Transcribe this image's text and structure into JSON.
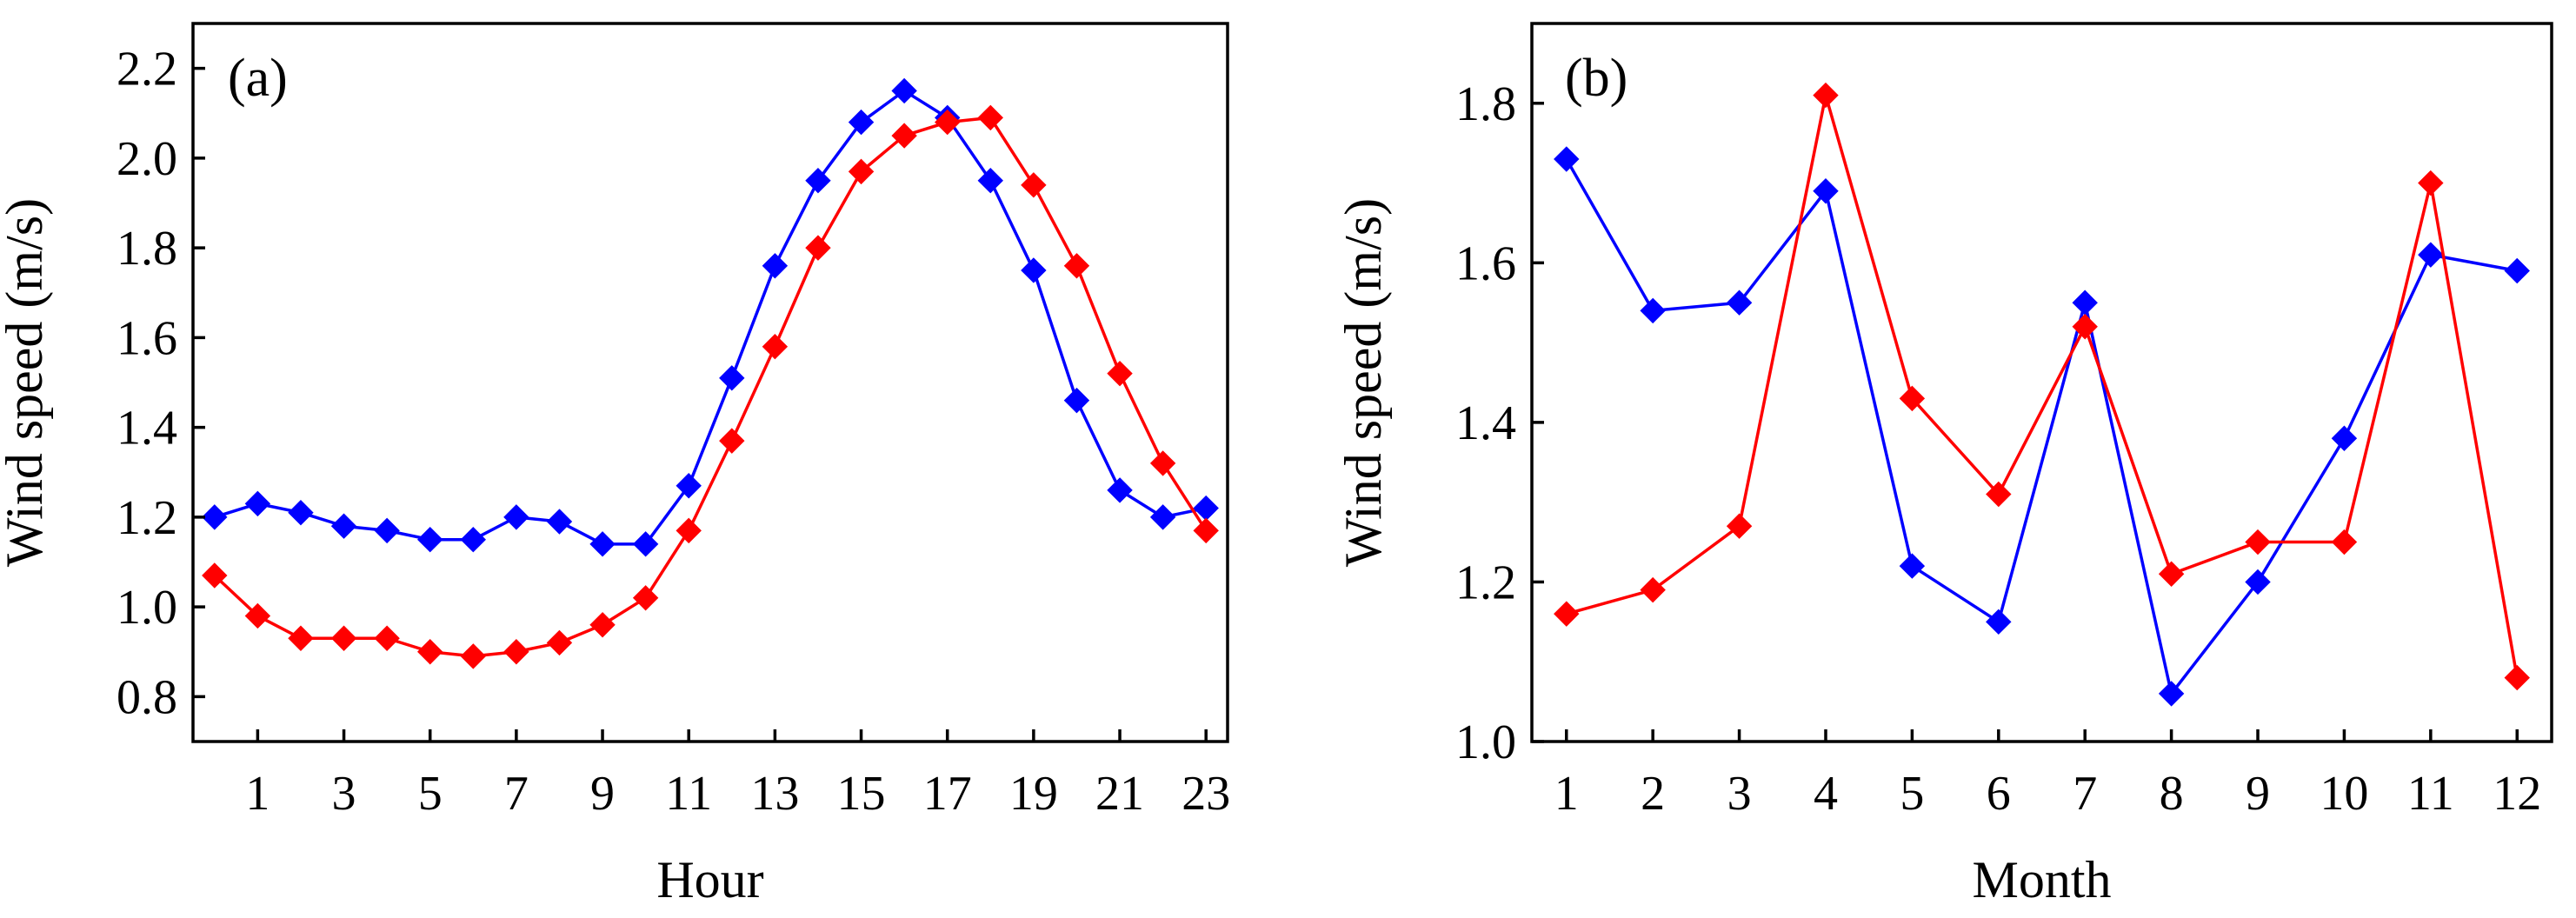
{
  "chart_data": [
    {
      "type": "line",
      "panel_label": "(a)",
      "xlabel": "Hour",
      "ylabel": "Wind speed (m/s)",
      "xlim": [
        -0.5,
        23.5
      ],
      "ylim": [
        0.7,
        2.3
      ],
      "xticks": [
        1,
        3,
        5,
        7,
        9,
        11,
        13,
        15,
        17,
        19,
        21,
        23
      ],
      "xtick_labels": [
        "1",
        "3",
        "5",
        "7",
        "9",
        "11",
        "13",
        "15",
        "17",
        "19",
        "21",
        "23"
      ],
      "yticks": [
        0.8,
        1.0,
        1.2,
        1.4,
        1.6,
        1.8,
        2.0,
        2.2
      ],
      "ytick_labels": [
        "0.8",
        "1.0",
        "1.2",
        "1.4",
        "1.6",
        "1.8",
        "2.0",
        "2.2"
      ],
      "x": [
        0,
        1,
        2,
        3,
        4,
        5,
        6,
        7,
        8,
        9,
        10,
        11,
        12,
        13,
        14,
        15,
        16,
        17,
        18,
        19,
        20,
        21,
        22,
        23
      ],
      "series": [
        {
          "name": "blue",
          "color": "#0000ff",
          "marker": "diamond",
          "values": [
            1.2,
            1.23,
            1.21,
            1.18,
            1.17,
            1.15,
            1.15,
            1.2,
            1.19,
            1.14,
            1.14,
            1.27,
            1.51,
            1.76,
            1.95,
            2.08,
            2.15,
            2.09,
            1.95,
            1.75,
            1.46,
            1.26,
            1.2,
            1.22
          ]
        },
        {
          "name": "red",
          "color": "#ff0000",
          "marker": "diamond",
          "values": [
            1.07,
            0.98,
            0.93,
            0.93,
            0.93,
            0.9,
            0.89,
            0.9,
            0.92,
            0.96,
            1.02,
            1.17,
            1.37,
            1.58,
            1.8,
            1.97,
            2.05,
            2.08,
            2.09,
            1.94,
            1.76,
            1.52,
            1.32,
            1.17
          ]
        }
      ]
    },
    {
      "type": "line",
      "panel_label": "(b)",
      "xlabel": "Month",
      "ylabel": "Wind speed (m/s)",
      "xlim": [
        0.6,
        12.4
      ],
      "ylim": [
        1.0,
        1.9
      ],
      "xticks": [
        1,
        2,
        3,
        4,
        5,
        6,
        7,
        8,
        9,
        10,
        11,
        12
      ],
      "xtick_labels": [
        "1",
        "2",
        "3",
        "4",
        "5",
        "6",
        "7",
        "8",
        "9",
        "10",
        "11",
        "12"
      ],
      "yticks": [
        1.0,
        1.2,
        1.4,
        1.6,
        1.8
      ],
      "ytick_labels": [
        "1.0",
        "1.2",
        "1.4",
        "1.6",
        "1.8"
      ],
      "x": [
        1,
        2,
        3,
        4,
        5,
        6,
        7,
        8,
        9,
        10,
        11,
        12
      ],
      "series": [
        {
          "name": "blue",
          "color": "#0000ff",
          "marker": "diamond",
          "values": [
            1.73,
            1.54,
            1.55,
            1.69,
            1.22,
            1.15,
            1.55,
            1.06,
            1.2,
            1.38,
            1.61,
            1.59
          ]
        },
        {
          "name": "red",
          "color": "#ff0000",
          "marker": "diamond",
          "values": [
            1.16,
            1.19,
            1.27,
            1.81,
            1.43,
            1.31,
            1.52,
            1.21,
            1.25,
            1.25,
            1.7,
            1.08
          ]
        }
      ]
    }
  ]
}
